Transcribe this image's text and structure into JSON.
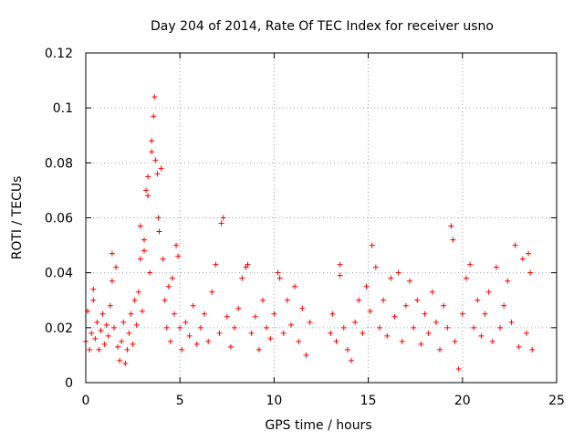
{
  "chart_data": {
    "type": "scatter",
    "title": "Day 204 of 2014, Rate Of TEC Index for receiver usno",
    "xlabel": "GPS time / hours",
    "ylabel": "ROTI / TECUs",
    "xlim": [
      0,
      25
    ],
    "ylim": [
      0,
      0.12
    ],
    "x_ticks": [
      0,
      5,
      10,
      15,
      20,
      25
    ],
    "x_tick_labels": [
      "0",
      "5",
      "10",
      "15",
      "20",
      "25"
    ],
    "y_ticks": [
      0,
      0.02,
      0.04,
      0.06,
      0.08,
      0.1,
      0.12
    ],
    "y_tick_labels": [
      "0",
      "0.02",
      "0.04",
      "0.06",
      "0.08",
      "0.1",
      "0.12"
    ],
    "grid": true,
    "marker": "plus",
    "series_color": "#ff0000",
    "data_gap_hours": [
      12.0,
      12.9
    ],
    "series": [
      {
        "name": "",
        "points": [
          [
            0.0,
            0.015
          ],
          [
            0.1,
            0.026
          ],
          [
            0.2,
            0.012
          ],
          [
            0.3,
            0.018
          ],
          [
            0.4,
            0.03
          ],
          [
            0.4,
            0.034
          ],
          [
            0.5,
            0.016
          ],
          [
            0.6,
            0.022
          ],
          [
            0.7,
            0.012
          ],
          [
            0.8,
            0.019
          ],
          [
            0.9,
            0.025
          ],
          [
            1.0,
            0.014
          ],
          [
            1.1,
            0.021
          ],
          [
            1.2,
            0.017
          ],
          [
            1.3,
            0.028
          ],
          [
            1.4,
            0.037
          ],
          [
            1.4,
            0.047
          ],
          [
            1.5,
            0.02
          ],
          [
            1.6,
            0.042
          ],
          [
            1.7,
            0.013
          ],
          [
            1.8,
            0.008
          ],
          [
            1.9,
            0.015
          ],
          [
            2.0,
            0.022
          ],
          [
            2.1,
            0.007
          ],
          [
            2.2,
            0.012
          ],
          [
            2.3,
            0.018
          ],
          [
            2.4,
            0.025
          ],
          [
            2.5,
            0.014
          ],
          [
            2.6,
            0.03
          ],
          [
            2.7,
            0.021
          ],
          [
            2.8,
            0.033
          ],
          [
            2.9,
            0.045
          ],
          [
            2.9,
            0.057
          ],
          [
            3.0,
            0.026
          ],
          [
            3.1,
            0.048
          ],
          [
            3.1,
            0.052
          ],
          [
            3.2,
            0.07
          ],
          [
            3.3,
            0.075
          ],
          [
            3.3,
            0.068
          ],
          [
            3.4,
            0.04
          ],
          [
            3.5,
            0.084
          ],
          [
            3.5,
            0.088
          ],
          [
            3.6,
            0.097
          ],
          [
            3.65,
            0.104
          ],
          [
            3.7,
            0.081
          ],
          [
            3.8,
            0.076
          ],
          [
            3.85,
            0.06
          ],
          [
            3.9,
            0.055
          ],
          [
            4.0,
            0.078
          ],
          [
            4.1,
            0.045
          ],
          [
            4.2,
            0.03
          ],
          [
            4.3,
            0.02
          ],
          [
            4.4,
            0.035
          ],
          [
            4.5,
            0.015
          ],
          [
            4.6,
            0.038
          ],
          [
            4.7,
            0.025
          ],
          [
            4.8,
            0.05
          ],
          [
            4.9,
            0.046
          ],
          [
            5.0,
            0.02
          ],
          [
            5.1,
            0.012
          ],
          [
            5.3,
            0.022
          ],
          [
            5.5,
            0.017
          ],
          [
            5.7,
            0.028
          ],
          [
            5.9,
            0.014
          ],
          [
            6.1,
            0.02
          ],
          [
            6.3,
            0.025
          ],
          [
            6.5,
            0.015
          ],
          [
            6.7,
            0.033
          ],
          [
            6.9,
            0.043
          ],
          [
            7.1,
            0.018
          ],
          [
            7.2,
            0.058
          ],
          [
            7.3,
            0.06
          ],
          [
            7.5,
            0.024
          ],
          [
            7.7,
            0.013
          ],
          [
            7.9,
            0.02
          ],
          [
            8.1,
            0.027
          ],
          [
            8.3,
            0.038
          ],
          [
            8.5,
            0.042
          ],
          [
            8.6,
            0.043
          ],
          [
            8.8,
            0.018
          ],
          [
            9.0,
            0.024
          ],
          [
            9.2,
            0.012
          ],
          [
            9.4,
            0.03
          ],
          [
            9.6,
            0.02
          ],
          [
            9.8,
            0.016
          ],
          [
            10.0,
            0.025
          ],
          [
            10.2,
            0.04
          ],
          [
            10.3,
            0.038
          ],
          [
            10.5,
            0.018
          ],
          [
            10.7,
            0.03
          ],
          [
            10.9,
            0.021
          ],
          [
            11.1,
            0.035
          ],
          [
            11.3,
            0.015
          ],
          [
            11.5,
            0.027
          ],
          [
            11.7,
            0.01
          ],
          [
            11.9,
            0.022
          ],
          [
            13.0,
            0.018
          ],
          [
            13.1,
            0.025
          ],
          [
            13.3,
            0.015
          ],
          [
            13.5,
            0.043
          ],
          [
            13.5,
            0.039
          ],
          [
            13.7,
            0.02
          ],
          [
            13.9,
            0.012
          ],
          [
            14.1,
            0.008
          ],
          [
            14.3,
            0.022
          ],
          [
            14.5,
            0.03
          ],
          [
            14.7,
            0.018
          ],
          [
            14.9,
            0.035
          ],
          [
            15.1,
            0.026
          ],
          [
            15.2,
            0.05
          ],
          [
            15.4,
            0.042
          ],
          [
            15.6,
            0.02
          ],
          [
            15.8,
            0.03
          ],
          [
            16.0,
            0.017
          ],
          [
            16.2,
            0.038
          ],
          [
            16.4,
            0.024
          ],
          [
            16.6,
            0.04
          ],
          [
            16.8,
            0.015
          ],
          [
            17.0,
            0.028
          ],
          [
            17.2,
            0.037
          ],
          [
            17.4,
            0.02
          ],
          [
            17.6,
            0.03
          ],
          [
            17.8,
            0.014
          ],
          [
            18.0,
            0.025
          ],
          [
            18.2,
            0.018
          ],
          [
            18.4,
            0.033
          ],
          [
            18.6,
            0.022
          ],
          [
            18.8,
            0.012
          ],
          [
            19.0,
            0.028
          ],
          [
            19.2,
            0.02
          ],
          [
            19.4,
            0.057
          ],
          [
            19.5,
            0.052
          ],
          [
            19.6,
            0.015
          ],
          [
            19.8,
            0.005
          ],
          [
            20.0,
            0.025
          ],
          [
            20.2,
            0.038
          ],
          [
            20.4,
            0.043
          ],
          [
            20.6,
            0.02
          ],
          [
            20.8,
            0.03
          ],
          [
            21.0,
            0.017
          ],
          [
            21.2,
            0.025
          ],
          [
            21.4,
            0.033
          ],
          [
            21.6,
            0.015
          ],
          [
            21.8,
            0.042
          ],
          [
            22.0,
            0.02
          ],
          [
            22.2,
            0.028
          ],
          [
            22.4,
            0.037
          ],
          [
            22.6,
            0.022
          ],
          [
            22.8,
            0.05
          ],
          [
            23.0,
            0.013
          ],
          [
            23.2,
            0.045
          ],
          [
            23.4,
            0.018
          ],
          [
            23.5,
            0.047
          ],
          [
            23.6,
            0.04
          ],
          [
            23.7,
            0.012
          ]
        ]
      }
    ]
  }
}
